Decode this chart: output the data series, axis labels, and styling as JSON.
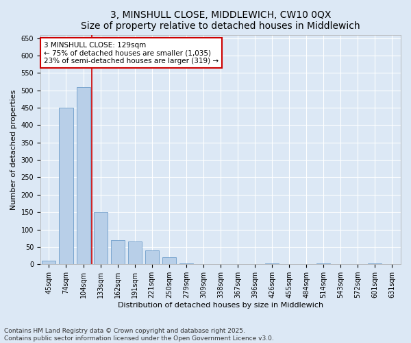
{
  "title": "3, MINSHULL CLOSE, MIDDLEWICH, CW10 0QX",
  "subtitle": "Size of property relative to detached houses in Middlewich",
  "xlabel": "Distribution of detached houses by size in Middlewich",
  "ylabel": "Number of detached properties",
  "categories": [
    "45sqm",
    "74sqm",
    "104sqm",
    "133sqm",
    "162sqm",
    "191sqm",
    "221sqm",
    "250sqm",
    "279sqm",
    "309sqm",
    "338sqm",
    "367sqm",
    "396sqm",
    "426sqm",
    "455sqm",
    "484sqm",
    "514sqm",
    "543sqm",
    "572sqm",
    "601sqm",
    "631sqm"
  ],
  "values": [
    10,
    450,
    510,
    150,
    70,
    65,
    40,
    20,
    2,
    0,
    0,
    0,
    0,
    2,
    0,
    0,
    2,
    0,
    0,
    2,
    0
  ],
  "bar_color": "#b8cfe8",
  "bar_edge_color": "#5a8fc2",
  "vline_x_index": 2,
  "vline_color": "#cc0000",
  "annotation_text": "3 MINSHULL CLOSE: 129sqm\n← 75% of detached houses are smaller (1,035)\n23% of semi-detached houses are larger (319) →",
  "annotation_box_color": "#ffffff",
  "annotation_box_edge": "#cc0000",
  "ylim": [
    0,
    660
  ],
  "yticks": [
    0,
    50,
    100,
    150,
    200,
    250,
    300,
    350,
    400,
    450,
    500,
    550,
    600,
    650
  ],
  "fig_bg_color": "#dce8f5",
  "plot_bg_color": "#dce8f5",
  "footer_text": "Contains HM Land Registry data © Crown copyright and database right 2025.\nContains public sector information licensed under the Open Government Licence v3.0.",
  "title_fontsize": 10,
  "axis_label_fontsize": 8,
  "tick_fontsize": 7,
  "annotation_fontsize": 7.5,
  "footer_fontsize": 6.5
}
